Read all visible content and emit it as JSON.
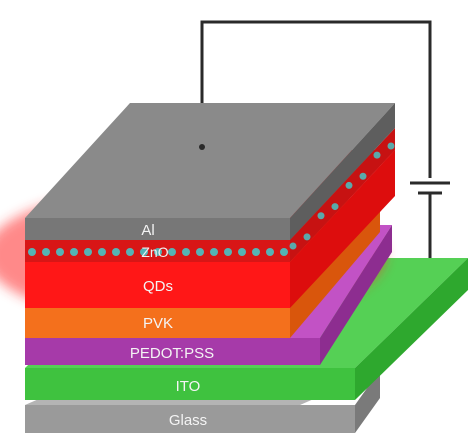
{
  "diagram": {
    "layers": [
      {
        "id": "glass",
        "label": "Glass",
        "color": "#9a9a9a"
      },
      {
        "id": "ito",
        "label": "ITO",
        "color": "#3fc23f"
      },
      {
        "id": "pedot",
        "label": "PEDOT:PSS",
        "color": "#a63aa9"
      },
      {
        "id": "pvk",
        "label": "PVK",
        "color": "#f4701c"
      },
      {
        "id": "qds",
        "label": "QDs",
        "color": "#ff1717"
      },
      {
        "id": "zno",
        "label": "ZnO",
        "color": "#d81616"
      },
      {
        "id": "al",
        "label": "Al",
        "color": "#777777"
      }
    ],
    "colors": {
      "wire": "#2a2a2a",
      "glow": "#ff3030",
      "dot": "#3ecfd1"
    }
  }
}
